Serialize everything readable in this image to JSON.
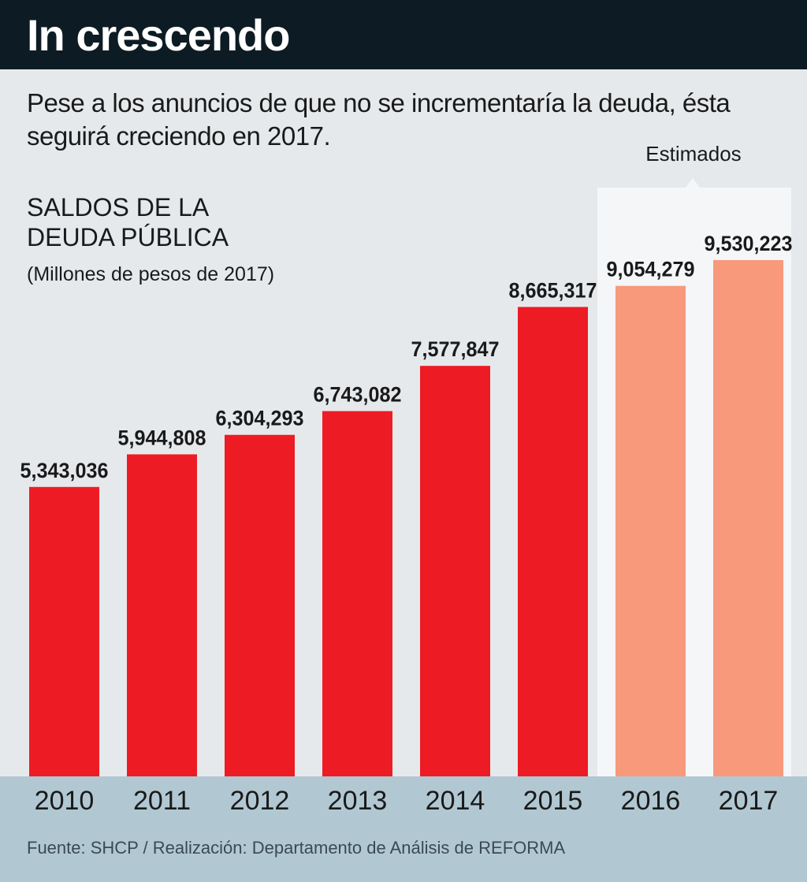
{
  "header": {
    "title": "In crescendo"
  },
  "subtitle": "Pese a los anuncios de que no se incrementaría la deuda, ésta seguirá creciendo en 2017.",
  "estimated_label": "Estimados",
  "source": "Fuente: SHCP / Realización: Departamento de Análisis de REFORMA",
  "chart_data": {
    "type": "bar",
    "title": "SALDOS DE LA DEUDA PÚBLICA",
    "units": "(Millones de pesos de 2017)",
    "categories": [
      "2010",
      "2011",
      "2012",
      "2013",
      "2014",
      "2015",
      "2016",
      "2017"
    ],
    "values": [
      5343036,
      5944808,
      6304293,
      6743082,
      7577847,
      8665317,
      9054279,
      9530223
    ],
    "value_labels": [
      "5,343,036",
      "5,944,808",
      "6,304,293",
      "6,743,082",
      "7,577,847",
      "8,665,317",
      "9,054,279",
      "9,530,223"
    ],
    "estimated_categories": [
      "2016",
      "2017"
    ],
    "colors": {
      "actual": "#ed1c24",
      "estimated": "#f8997c"
    },
    "ylim": [
      0,
      9530223
    ],
    "grid": false,
    "legend": "none"
  }
}
